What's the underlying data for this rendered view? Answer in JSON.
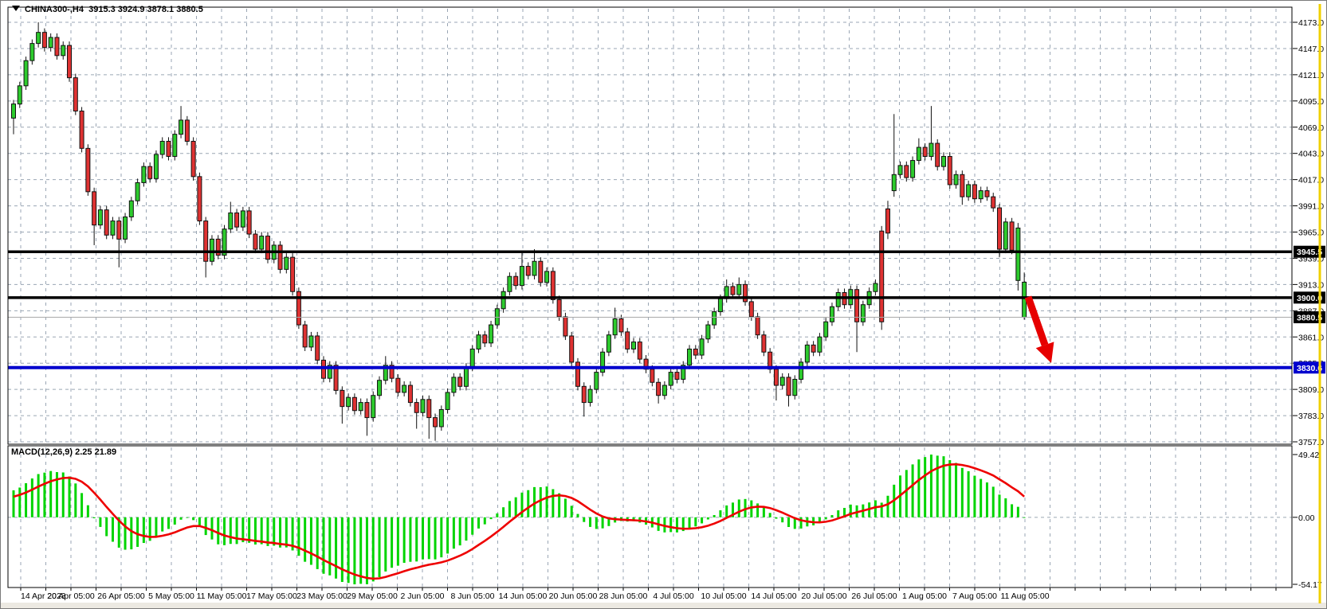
{
  "window": {
    "title_symbol": "CHINA300-,H4",
    "title_ohlc": "3915.3 3924.9 3878.1 3880.5"
  },
  "chart_data": {
    "type": "candlestick",
    "symbol": "CHINA300-",
    "timeframe": "H4",
    "current_bar": {
      "open": "3915.3",
      "high": "3924.9",
      "low": "3878.1",
      "close": "3880.5"
    },
    "price_axis": {
      "ticks": [
        4173.0,
        4147.0,
        4121.0,
        4095.0,
        4069.0,
        4043.0,
        4017.0,
        3991.0,
        3965.0,
        3939.0,
        3913.0,
        3887.0,
        3861.0,
        3835.0,
        3809.0,
        3783.0,
        3757.0
      ]
    },
    "time_axis": {
      "labels": [
        "14 Apr 2023",
        "20 Apr 05:00",
        "26 Apr 05:00",
        "5 May 05:00",
        "11 May 05:00",
        "17 May 05:00",
        "23 May 05:00",
        "29 May 05:00",
        "2 Jun 05:00",
        "8 Jun 05:00",
        "14 Jun 05:00",
        "20 Jun 05:00",
        "28 Jun 05:00",
        "4 Jul 05:00",
        "10 Jul 05:00",
        "14 Jul 05:00",
        "20 Jul 05:00",
        "26 Jul 05:00",
        "1 Aug 05:00",
        "7 Aug 05:00",
        "11 Aug 05:00"
      ]
    },
    "horizontal_lines": [
      {
        "price": 3945.5,
        "label": "3945.5",
        "style": "black"
      },
      {
        "price": 3900.0,
        "label": "3900.0",
        "style": "black"
      },
      {
        "price": 3830.6,
        "label": "3830.6",
        "style": "blue"
      }
    ],
    "bid_line": {
      "price": 3880.5,
      "label": "3880.5"
    },
    "macd": {
      "name": "MACD",
      "label": "MACD(12,26,9)",
      "main_value": "2.25",
      "signal_value": "21.89",
      "params": [
        12,
        26,
        9
      ],
      "axis_labels": [
        "49.42",
        "0.00",
        "-54.17"
      ]
    },
    "annotation_arrow": {
      "from": [
        1289,
        372
      ],
      "to": [
        1318,
        455
      ],
      "color": "#e60000"
    },
    "candles": [
      [
        4078,
        4096,
        4062,
        4092
      ],
      [
        4092,
        4114,
        4088,
        4110
      ],
      [
        4110,
        4139,
        4106,
        4135
      ],
      [
        4135,
        4156,
        4131,
        4152
      ],
      [
        4152,
        4173,
        4148,
        4163
      ],
      [
        4163,
        4167,
        4144,
        4148
      ],
      [
        4148,
        4162,
        4144,
        4158
      ],
      [
        4158,
        4162,
        4136,
        4140
      ],
      [
        4140,
        4154,
        4136,
        4150
      ],
      [
        4150,
        4154,
        4114,
        4118
      ],
      [
        4118,
        4122,
        4081,
        4085
      ],
      [
        4085,
        4089,
        4044,
        4048
      ],
      [
        4048,
        4052,
        4001,
        4005
      ],
      [
        4005,
        4009,
        3952,
        3972
      ],
      [
        3972,
        3991,
        3968,
        3987
      ],
      [
        3987,
        3991,
        3958,
        3962
      ],
      [
        3962,
        3980,
        3958,
        3976
      ],
      [
        3976,
        3980,
        3930,
        3958
      ],
      [
        3958,
        3984,
        3954,
        3980
      ],
      [
        3980,
        4000,
        3976,
        3996
      ],
      [
        3996,
        4018,
        3992,
        4014
      ],
      [
        4014,
        4034,
        4010,
        4030
      ],
      [
        4030,
        4034,
        4014,
        4018
      ],
      [
        4018,
        4046,
        4014,
        4042
      ],
      [
        4042,
        4059,
        4038,
        4055
      ],
      [
        4055,
        4059,
        4036,
        4040
      ],
      [
        4040,
        4066,
        4036,
        4062
      ],
      [
        4062,
        4090,
        4058,
        4076
      ],
      [
        4076,
        4080,
        4051,
        4055
      ],
      [
        4055,
        4059,
        4016,
        4020
      ],
      [
        4020,
        4024,
        3972,
        3976
      ],
      [
        3976,
        3980,
        3920,
        3936
      ],
      [
        3936,
        3962,
        3932,
        3958
      ],
      [
        3958,
        3962,
        3938,
        3942
      ],
      [
        3942,
        3972,
        3938,
        3968
      ],
      [
        3968,
        3995,
        3964,
        3984
      ],
      [
        3984,
        3988,
        3966,
        3970
      ],
      [
        3970,
        3990,
        3966,
        3986
      ],
      [
        3986,
        3990,
        3959,
        3963
      ],
      [
        3963,
        3967,
        3944,
        3948
      ],
      [
        3948,
        3965,
        3944,
        3961
      ],
      [
        3961,
        3965,
        3934,
        3938
      ],
      [
        3938,
        3956,
        3934,
        3952
      ],
      [
        3952,
        3956,
        3924,
        3928
      ],
      [
        3928,
        3944,
        3924,
        3940
      ],
      [
        3940,
        3944,
        3902,
        3906
      ],
      [
        3906,
        3910,
        3869,
        3873
      ],
      [
        3873,
        3877,
        3847,
        3851
      ],
      [
        3851,
        3866,
        3847,
        3862
      ],
      [
        3862,
        3866,
        3834,
        3838
      ],
      [
        3838,
        3842,
        3816,
        3820
      ],
      [
        3820,
        3837,
        3816,
        3833
      ],
      [
        3833,
        3837,
        3804,
        3808
      ],
      [
        3808,
        3812,
        3775,
        3792
      ],
      [
        3792,
        3805,
        3788,
        3801
      ],
      [
        3801,
        3805,
        3784,
        3788
      ],
      [
        3788,
        3800,
        3784,
        3796
      ],
      [
        3796,
        3800,
        3763,
        3781
      ],
      [
        3781,
        3807,
        3777,
        3803
      ],
      [
        3803,
        3822,
        3799,
        3818
      ],
      [
        3818,
        3842,
        3814,
        3833
      ],
      [
        3833,
        3837,
        3816,
        3820
      ],
      [
        3820,
        3824,
        3802,
        3806
      ],
      [
        3806,
        3817,
        3802,
        3813
      ],
      [
        3813,
        3817,
        3792,
        3796
      ],
      [
        3796,
        3800,
        3770,
        3786
      ],
      [
        3786,
        3803,
        3782,
        3799
      ],
      [
        3799,
        3803,
        3760,
        3781
      ],
      [
        3781,
        3785,
        3758,
        3772
      ],
      [
        3772,
        3793,
        3768,
        3789
      ],
      [
        3789,
        3810,
        3785,
        3806
      ],
      [
        3806,
        3825,
        3802,
        3821
      ],
      [
        3821,
        3825,
        3808,
        3812
      ],
      [
        3812,
        3835,
        3808,
        3831
      ],
      [
        3831,
        3853,
        3827,
        3849
      ],
      [
        3849,
        3867,
        3845,
        3863
      ],
      [
        3863,
        3867,
        3851,
        3855
      ],
      [
        3855,
        3877,
        3851,
        3873
      ],
      [
        3873,
        3893,
        3869,
        3889
      ],
      [
        3889,
        3910,
        3885,
        3906
      ],
      [
        3906,
        3925,
        3902,
        3921
      ],
      [
        3921,
        3925,
        3908,
        3912
      ],
      [
        3912,
        3945,
        3908,
        3931
      ],
      [
        3931,
        3935,
        3918,
        3922
      ],
      [
        3922,
        3948,
        3918,
        3936
      ],
      [
        3936,
        3940,
        3911,
        3915
      ],
      [
        3915,
        3930,
        3911,
        3926
      ],
      [
        3926,
        3930,
        3894,
        3898
      ],
      [
        3898,
        3902,
        3877,
        3881
      ],
      [
        3881,
        3885,
        3858,
        3862
      ],
      [
        3862,
        3866,
        3832,
        3836
      ],
      [
        3836,
        3840,
        3808,
        3812
      ],
      [
        3812,
        3816,
        3782,
        3796
      ],
      [
        3796,
        3813,
        3792,
        3809
      ],
      [
        3809,
        3830,
        3805,
        3826
      ],
      [
        3826,
        3850,
        3822,
        3846
      ],
      [
        3846,
        3867,
        3842,
        3863
      ],
      [
        3863,
        3890,
        3859,
        3879
      ],
      [
        3879,
        3883,
        3862,
        3866
      ],
      [
        3866,
        3870,
        3845,
        3849
      ],
      [
        3849,
        3860,
        3845,
        3856
      ],
      [
        3856,
        3860,
        3835,
        3839
      ],
      [
        3839,
        3843,
        3825,
        3829
      ],
      [
        3829,
        3833,
        3812,
        3816
      ],
      [
        3816,
        3820,
        3795,
        3803
      ],
      [
        3803,
        3817,
        3799,
        3813
      ],
      [
        3813,
        3830,
        3809,
        3826
      ],
      [
        3826,
        3830,
        3815,
        3819
      ],
      [
        3819,
        3837,
        3815,
        3833
      ],
      [
        3833,
        3853,
        3829,
        3849
      ],
      [
        3849,
        3853,
        3839,
        3843
      ],
      [
        3843,
        3863,
        3839,
        3859
      ],
      [
        3859,
        3877,
        3855,
        3873
      ],
      [
        3873,
        3890,
        3869,
        3886
      ],
      [
        3886,
        3903,
        3882,
        3899
      ],
      [
        3899,
        3918,
        3895,
        3911
      ],
      [
        3911,
        3915,
        3899,
        3903
      ],
      [
        3903,
        3920,
        3899,
        3913
      ],
      [
        3913,
        3917,
        3892,
        3896
      ],
      [
        3896,
        3900,
        3877,
        3881
      ],
      [
        3881,
        3885,
        3859,
        3863
      ],
      [
        3863,
        3867,
        3842,
        3846
      ],
      [
        3846,
        3850,
        3825,
        3829
      ],
      [
        3829,
        3833,
        3798,
        3813
      ],
      [
        3813,
        3825,
        3809,
        3821
      ],
      [
        3821,
        3825,
        3792,
        3803
      ],
      [
        3803,
        3823,
        3799,
        3819
      ],
      [
        3819,
        3840,
        3815,
        3836
      ],
      [
        3836,
        3857,
        3832,
        3853
      ],
      [
        3853,
        3857,
        3842,
        3846
      ],
      [
        3846,
        3865,
        3842,
        3861
      ],
      [
        3861,
        3880,
        3857,
        3876
      ],
      [
        3876,
        3895,
        3872,
        3891
      ],
      [
        3891,
        3909,
        3887,
        3905
      ],
      [
        3905,
        3909,
        3889,
        3893
      ],
      [
        3893,
        3912,
        3889,
        3908
      ],
      [
        3908,
        3912,
        3846,
        3876
      ],
      [
        3876,
        3897,
        3872,
        3893
      ],
      [
        3893,
        3910,
        3889,
        3906
      ],
      [
        3906,
        3918,
        3902,
        3914
      ],
      [
        3966,
        3971,
        3868,
        3876
      ],
      [
        3988,
        3996,
        3958,
        3964
      ],
      [
        4006,
        4082,
        4000,
        4022
      ],
      [
        4022,
        4035,
        4018,
        4031
      ],
      [
        4031,
        4035,
        4015,
        4019
      ],
      [
        4019,
        4040,
        4015,
        4036
      ],
      [
        4036,
        4058,
        4032,
        4049
      ],
      [
        4049,
        4053,
        4036,
        4040
      ],
      [
        4040,
        4090,
        4036,
        4053
      ],
      [
        4053,
        4057,
        4026,
        4030
      ],
      [
        4030,
        4044,
        4026,
        4040
      ],
      [
        4040,
        4044,
        4008,
        4012
      ],
      [
        4012,
        4026,
        4008,
        4022
      ],
      [
        4022,
        4026,
        3992,
        4000
      ],
      [
        4000,
        4016,
        3996,
        4012
      ],
      [
        4012,
        4016,
        3994,
        3998
      ],
      [
        3998,
        4010,
        3994,
        4006
      ],
      [
        4006,
        4010,
        3996,
        4000
      ],
      [
        4000,
        4004,
        3985,
        3989
      ],
      [
        3989,
        3993,
        3940,
        3948
      ],
      [
        3948,
        3979,
        3944,
        3975
      ],
      [
        3975,
        3979,
        3943,
        3947
      ],
      [
        3917,
        3974,
        3907,
        3969
      ],
      [
        3915.3,
        3924.9,
        3878.1,
        3880.5,
        "g"
      ]
    ],
    "colors": {
      "bull": "#2dcb2d",
      "bear": "#df3232",
      "candle_outline": "#111111",
      "grid": "#9aa6b4",
      "macd_histogram": "#00d400",
      "macd_signal": "#ee0000",
      "level_line_black": "#000000",
      "level_line_blue": "#0000cd",
      "bid_line": "#a9a9a9",
      "badge_text": "#ffffff",
      "axis_text": "#000000",
      "active_edge_yellow": "#f0d000"
    }
  }
}
